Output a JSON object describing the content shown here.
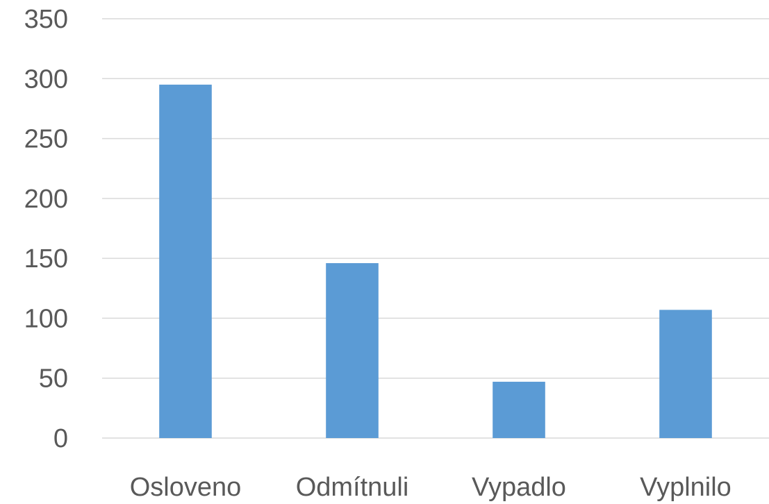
{
  "chart_data": {
    "type": "bar",
    "categories": [
      "Osloveno",
      "Odmítnuli",
      "Vypadlo",
      "Vyplnilo"
    ],
    "series": [
      {
        "values": [
          295,
          146,
          47,
          107
        ],
        "color": "#5b9bd5"
      }
    ],
    "title": "",
    "xlabel": "",
    "ylabel": "",
    "ylim": [
      0,
      350
    ],
    "yticks": [
      0,
      50,
      100,
      150,
      200,
      250,
      300,
      350
    ],
    "grid": true,
    "legend": "none",
    "colors": {
      "bar": "#5b9bd5",
      "grid": "#d9d9d9",
      "text": "#595959"
    }
  }
}
